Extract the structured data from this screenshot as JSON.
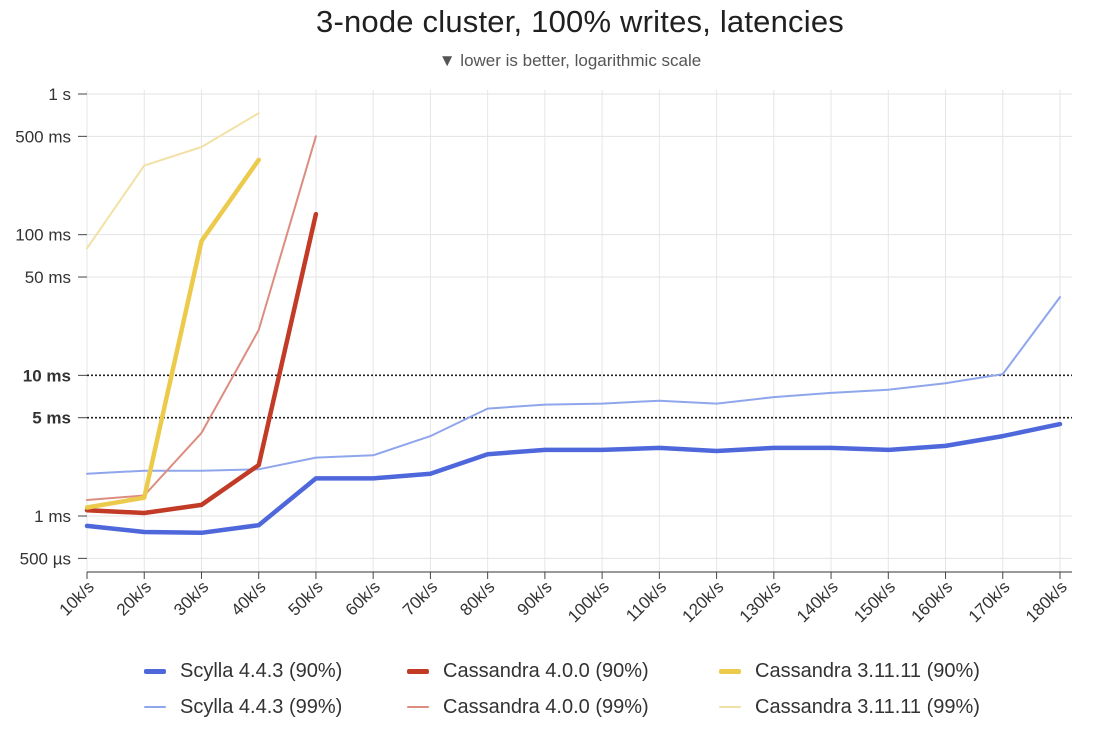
{
  "chart_data": {
    "type": "line",
    "title": "3-node cluster, 100% writes, latencies",
    "subtitle": "▼ lower is better, logarithmic scale",
    "y_scale": "log",
    "y_unit": "ms",
    "ylim": [
      0.4,
      1000
    ],
    "grid": true,
    "legend_position": "bottom",
    "categories": [
      "10k/s",
      "20k/s",
      "30k/s",
      "40k/s",
      "50k/s",
      "60k/s",
      "70k/s",
      "80k/s",
      "90k/s",
      "100k/s",
      "110k/s",
      "120k/s",
      "130k/s",
      "140k/s",
      "150k/s",
      "160k/s",
      "170k/s",
      "180k/s"
    ],
    "y_ticks": [
      {
        "value": 0.5,
        "label": "500 µs",
        "bold": false,
        "dotted": false
      },
      {
        "value": 1,
        "label": "1 ms",
        "bold": false,
        "dotted": false
      },
      {
        "value": 5,
        "label": "5 ms",
        "bold": true,
        "dotted": true
      },
      {
        "value": 10,
        "label": "10 ms",
        "bold": true,
        "dotted": true
      },
      {
        "value": 50,
        "label": "50 ms",
        "bold": false,
        "dotted": false
      },
      {
        "value": 100,
        "label": "100 ms",
        "bold": false,
        "dotted": false
      },
      {
        "value": 500,
        "label": "500 ms",
        "bold": false,
        "dotted": false
      },
      {
        "value": 1000,
        "label": "1 s",
        "bold": false,
        "dotted": false
      }
    ],
    "series": [
      {
        "name": "Scylla 4.4.3 (99%)",
        "color": "#8fa6ec",
        "width": "thin",
        "values": [
          2.0,
          2.1,
          2.1,
          2.15,
          2.6,
          2.7,
          3.7,
          5.8,
          6.2,
          6.3,
          6.6,
          6.3,
          7.0,
          7.5,
          7.9,
          8.8,
          10.2,
          36
        ]
      },
      {
        "name": "Cassandra 4.0.0 (99%)",
        "color": "#dc8d80",
        "width": "thin",
        "values": [
          1.3,
          1.4,
          3.9,
          21,
          500,
          null,
          null,
          null,
          null,
          null,
          null,
          null,
          null,
          null,
          null,
          null,
          null,
          null
        ]
      },
      {
        "name": "Cassandra 3.11.11 (99%)",
        "color": "#f2e1a6",
        "width": "thin",
        "values": [
          80,
          310,
          420,
          730,
          null,
          null,
          null,
          null,
          null,
          null,
          null,
          null,
          null,
          null,
          null,
          null,
          null,
          null
        ]
      },
      {
        "name": "Scylla 4.4.3 (90%)",
        "color": "#4e68dc",
        "width": "thick",
        "values": [
          0.85,
          0.77,
          0.76,
          0.86,
          1.85,
          1.85,
          2.0,
          2.75,
          2.95,
          2.95,
          3.05,
          2.9,
          3.05,
          3.05,
          2.95,
          3.15,
          3.7,
          4.5
        ]
      },
      {
        "name": "Cassandra 4.0.0 (90%)",
        "color": "#c23b26",
        "width": "thick",
        "values": [
          1.1,
          1.05,
          1.2,
          2.3,
          140,
          null,
          null,
          null,
          null,
          null,
          null,
          null,
          null,
          null,
          null,
          null,
          null,
          null
        ]
      },
      {
        "name": "Cassandra 3.11.11 (90%)",
        "color": "#eccb4c",
        "width": "thick",
        "values": [
          1.15,
          1.35,
          90,
          340,
          null,
          null,
          null,
          null,
          null,
          null,
          null,
          null,
          null,
          null,
          null,
          null,
          null,
          null
        ]
      }
    ]
  },
  "legend": [
    {
      "label": "Scylla 4.4.3 (90%)",
      "color": "#4e68dc",
      "thickness": "thick"
    },
    {
      "label": "Cassandra 4.0.0 (90%)",
      "color": "#c23b26",
      "thickness": "thick"
    },
    {
      "label": "Cassandra 3.11.11 (90%)",
      "color": "#eccb4c",
      "thickness": "thick"
    },
    {
      "label": "Scylla 4.4.3 (99%)",
      "color": "#8fa6ec",
      "thickness": "thin"
    },
    {
      "label": "Cassandra 4.0.0 (99%)",
      "color": "#dc8d80",
      "thickness": "thin"
    },
    {
      "label": "Cassandra 3.11.11 (99%)",
      "color": "#f2e1a6",
      "thickness": "thin"
    }
  ]
}
